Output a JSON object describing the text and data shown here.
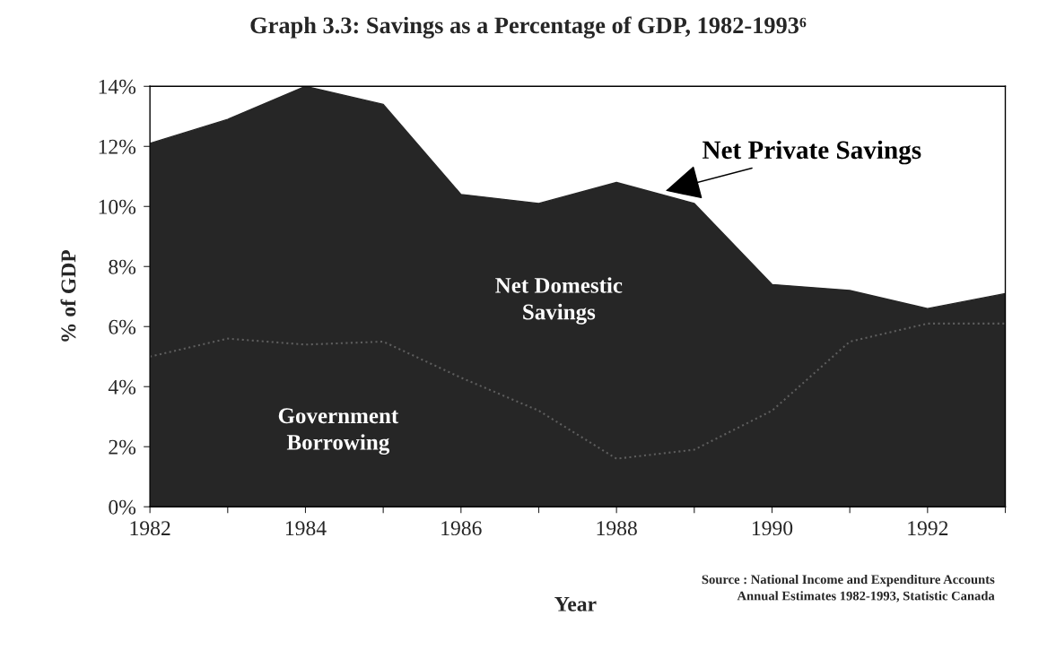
{
  "chart_data": {
    "type": "area",
    "title": "Graph 3.3: Savings as a Percentage of GDP, 1982-1993⁶",
    "xlabel": "Year",
    "ylabel": "% of GDP",
    "x": [
      1982,
      1983,
      1984,
      1985,
      1986,
      1987,
      1988,
      1989,
      1990,
      1991,
      1992,
      1993
    ],
    "series": [
      {
        "color": "#262626",
        "values": [
          12.1,
          12.9,
          14.0,
          13.4,
          10.4,
          10.1,
          10.8,
          10.1,
          7.4,
          7.2,
          6.6,
          7.1
        ]
      },
      {
        "type": "line",
        "color": "#5e5e5e",
        "line_style": "dotted",
        "values": [
          5.0,
          5.6,
          5.4,
          5.5,
          4.3,
          3.2,
          1.6,
          1.9,
          3.2,
          5.5,
          6.1,
          6.1
        ]
      }
    ],
    "xlim": [
      1982,
      1993
    ],
    "xticks": [
      1982,
      {
        "value": 1983,
        "label": null
      },
      1984,
      {
        "value": 1985,
        "label": null
      },
      1986,
      {
        "value": 1987,
        "label": null
      },
      1988,
      {
        "value": 1989,
        "label": null
      },
      1990,
      {
        "value": 1991,
        "label": null
      },
      1992,
      {
        "value": 1993,
        "label": null
      }
    ],
    "ylim": [
      0,
      14
    ],
    "yticks": [
      {
        "value": 0,
        "label": "0%"
      },
      {
        "value": 2,
        "label": "2%"
      },
      {
        "value": 4,
        "label": "4%"
      },
      {
        "value": 6,
        "label": "6%"
      },
      {
        "value": 8,
        "label": "8%"
      },
      {
        "value": 10,
        "label": "10%"
      },
      {
        "value": 12,
        "label": "12%"
      },
      {
        "value": 14,
        "label": "14%"
      }
    ],
    "grid": false,
    "legend": false,
    "annotations": [
      {
        "text": "Net Private Savings",
        "x": 1988.6,
        "y": 10.5
      },
      "Net Domestic\nSavings",
      "Government\nBorrowing",
      "Source : National Income and Expenditure Accounts\nAnnual Estimates 1982-1993, Statistic Canada"
    ]
  }
}
